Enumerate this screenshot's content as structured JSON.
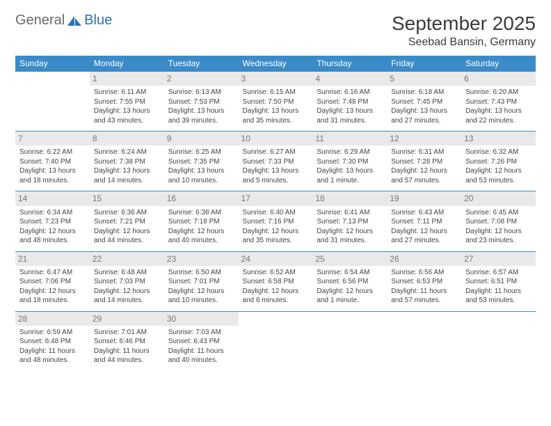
{
  "logo": {
    "part1": "General",
    "part2": "Blue"
  },
  "title": "September 2025",
  "location": "Seebad Bansin, Germany",
  "colors": {
    "header_bg": "#3b8bc8",
    "header_text": "#ffffff",
    "daynum_bg": "#e9e9e9",
    "daynum_text": "#777777",
    "body_text": "#444444",
    "border": "#3b8bc8",
    "logo_gray": "#6a6a6a",
    "logo_blue": "#2a72b5"
  },
  "weekdays": [
    "Sunday",
    "Monday",
    "Tuesday",
    "Wednesday",
    "Thursday",
    "Friday",
    "Saturday"
  ],
  "weeks": [
    [
      null,
      {
        "n": "1",
        "sunrise": "Sunrise: 6:11 AM",
        "sunset": "Sunset: 7:55 PM",
        "daylight": "Daylight: 13 hours and 43 minutes."
      },
      {
        "n": "2",
        "sunrise": "Sunrise: 6:13 AM",
        "sunset": "Sunset: 7:53 PM",
        "daylight": "Daylight: 13 hours and 39 minutes."
      },
      {
        "n": "3",
        "sunrise": "Sunrise: 6:15 AM",
        "sunset": "Sunset: 7:50 PM",
        "daylight": "Daylight: 13 hours and 35 minutes."
      },
      {
        "n": "4",
        "sunrise": "Sunrise: 6:16 AM",
        "sunset": "Sunset: 7:48 PM",
        "daylight": "Daylight: 13 hours and 31 minutes."
      },
      {
        "n": "5",
        "sunrise": "Sunrise: 6:18 AM",
        "sunset": "Sunset: 7:45 PM",
        "daylight": "Daylight: 13 hours and 27 minutes."
      },
      {
        "n": "6",
        "sunrise": "Sunrise: 6:20 AM",
        "sunset": "Sunset: 7:43 PM",
        "daylight": "Daylight: 13 hours and 22 minutes."
      }
    ],
    [
      {
        "n": "7",
        "sunrise": "Sunrise: 6:22 AM",
        "sunset": "Sunset: 7:40 PM",
        "daylight": "Daylight: 13 hours and 18 minutes."
      },
      {
        "n": "8",
        "sunrise": "Sunrise: 6:24 AM",
        "sunset": "Sunset: 7:38 PM",
        "daylight": "Daylight: 13 hours and 14 minutes."
      },
      {
        "n": "9",
        "sunrise": "Sunrise: 6:25 AM",
        "sunset": "Sunset: 7:35 PM",
        "daylight": "Daylight: 13 hours and 10 minutes."
      },
      {
        "n": "10",
        "sunrise": "Sunrise: 6:27 AM",
        "sunset": "Sunset: 7:33 PM",
        "daylight": "Daylight: 13 hours and 5 minutes."
      },
      {
        "n": "11",
        "sunrise": "Sunrise: 6:29 AM",
        "sunset": "Sunset: 7:30 PM",
        "daylight": "Daylight: 13 hours and 1 minute."
      },
      {
        "n": "12",
        "sunrise": "Sunrise: 6:31 AM",
        "sunset": "Sunset: 7:28 PM",
        "daylight": "Daylight: 12 hours and 57 minutes."
      },
      {
        "n": "13",
        "sunrise": "Sunrise: 6:32 AM",
        "sunset": "Sunset: 7:26 PM",
        "daylight": "Daylight: 12 hours and 53 minutes."
      }
    ],
    [
      {
        "n": "14",
        "sunrise": "Sunrise: 6:34 AM",
        "sunset": "Sunset: 7:23 PM",
        "daylight": "Daylight: 12 hours and 48 minutes."
      },
      {
        "n": "15",
        "sunrise": "Sunrise: 6:36 AM",
        "sunset": "Sunset: 7:21 PM",
        "daylight": "Daylight: 12 hours and 44 minutes."
      },
      {
        "n": "16",
        "sunrise": "Sunrise: 6:38 AM",
        "sunset": "Sunset: 7:18 PM",
        "daylight": "Daylight: 12 hours and 40 minutes."
      },
      {
        "n": "17",
        "sunrise": "Sunrise: 6:40 AM",
        "sunset": "Sunset: 7:16 PM",
        "daylight": "Daylight: 12 hours and 35 minutes."
      },
      {
        "n": "18",
        "sunrise": "Sunrise: 6:41 AM",
        "sunset": "Sunset: 7:13 PM",
        "daylight": "Daylight: 12 hours and 31 minutes."
      },
      {
        "n": "19",
        "sunrise": "Sunrise: 6:43 AM",
        "sunset": "Sunset: 7:11 PM",
        "daylight": "Daylight: 12 hours and 27 minutes."
      },
      {
        "n": "20",
        "sunrise": "Sunrise: 6:45 AM",
        "sunset": "Sunset: 7:08 PM",
        "daylight": "Daylight: 12 hours and 23 minutes."
      }
    ],
    [
      {
        "n": "21",
        "sunrise": "Sunrise: 6:47 AM",
        "sunset": "Sunset: 7:06 PM",
        "daylight": "Daylight: 12 hours and 18 minutes."
      },
      {
        "n": "22",
        "sunrise": "Sunrise: 6:48 AM",
        "sunset": "Sunset: 7:03 PM",
        "daylight": "Daylight: 12 hours and 14 minutes."
      },
      {
        "n": "23",
        "sunrise": "Sunrise: 6:50 AM",
        "sunset": "Sunset: 7:01 PM",
        "daylight": "Daylight: 12 hours and 10 minutes."
      },
      {
        "n": "24",
        "sunrise": "Sunrise: 6:52 AM",
        "sunset": "Sunset: 6:58 PM",
        "daylight": "Daylight: 12 hours and 6 minutes."
      },
      {
        "n": "25",
        "sunrise": "Sunrise: 6:54 AM",
        "sunset": "Sunset: 6:56 PM",
        "daylight": "Daylight: 12 hours and 1 minute."
      },
      {
        "n": "26",
        "sunrise": "Sunrise: 6:56 AM",
        "sunset": "Sunset: 6:53 PM",
        "daylight": "Daylight: 11 hours and 57 minutes."
      },
      {
        "n": "27",
        "sunrise": "Sunrise: 6:57 AM",
        "sunset": "Sunset: 6:51 PM",
        "daylight": "Daylight: 11 hours and 53 minutes."
      }
    ],
    [
      {
        "n": "28",
        "sunrise": "Sunrise: 6:59 AM",
        "sunset": "Sunset: 6:48 PM",
        "daylight": "Daylight: 11 hours and 48 minutes."
      },
      {
        "n": "29",
        "sunrise": "Sunrise: 7:01 AM",
        "sunset": "Sunset: 6:46 PM",
        "daylight": "Daylight: 11 hours and 44 minutes."
      },
      {
        "n": "30",
        "sunrise": "Sunrise: 7:03 AM",
        "sunset": "Sunset: 6:43 PM",
        "daylight": "Daylight: 11 hours and 40 minutes."
      },
      null,
      null,
      null,
      null
    ]
  ]
}
